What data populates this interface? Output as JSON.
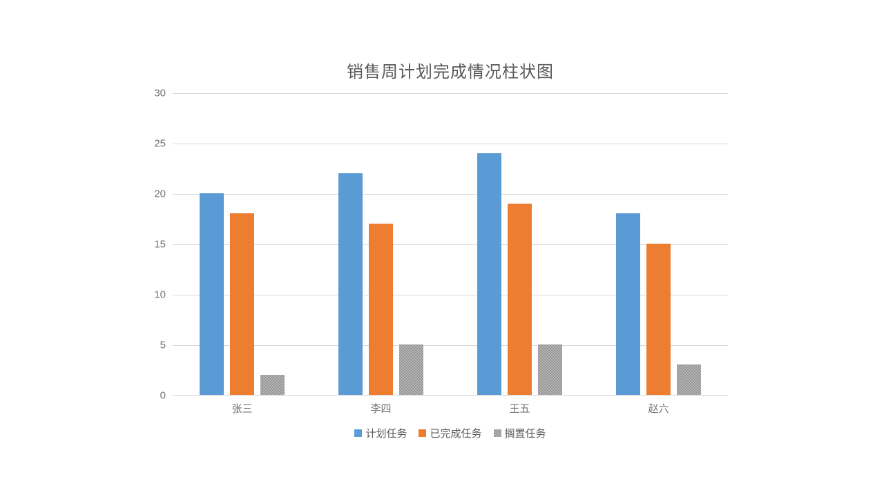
{
  "page": {
    "background_color": "#ffffff"
  },
  "chart_data": {
    "type": "bar",
    "title": "销售周计划完成情况柱状图",
    "categories": [
      "张三",
      "李四",
      "王五",
      "赵六"
    ],
    "series": [
      {
        "name": "计划任务",
        "color": "#5b9bd5",
        "pattern": "solid",
        "values": [
          20,
          22,
          24,
          18
        ]
      },
      {
        "name": "已完成任务",
        "color": "#ed7d31",
        "pattern": "solid",
        "values": [
          18,
          17,
          19,
          15
        ]
      },
      {
        "name": "搁置任务",
        "color": "#a5a5a5",
        "pattern": "dotted",
        "values": [
          2,
          5,
          5,
          3
        ]
      }
    ],
    "xlabel": "",
    "ylabel": "",
    "ylim": [
      0,
      30
    ],
    "yticks": [
      0,
      5,
      10,
      15,
      20,
      25,
      30
    ],
    "grid": true,
    "legend_position": "bottom",
    "style": {
      "title_color": "#595959",
      "axis_text_color": "#737373",
      "gridline_color": "#d9d9d9"
    }
  }
}
